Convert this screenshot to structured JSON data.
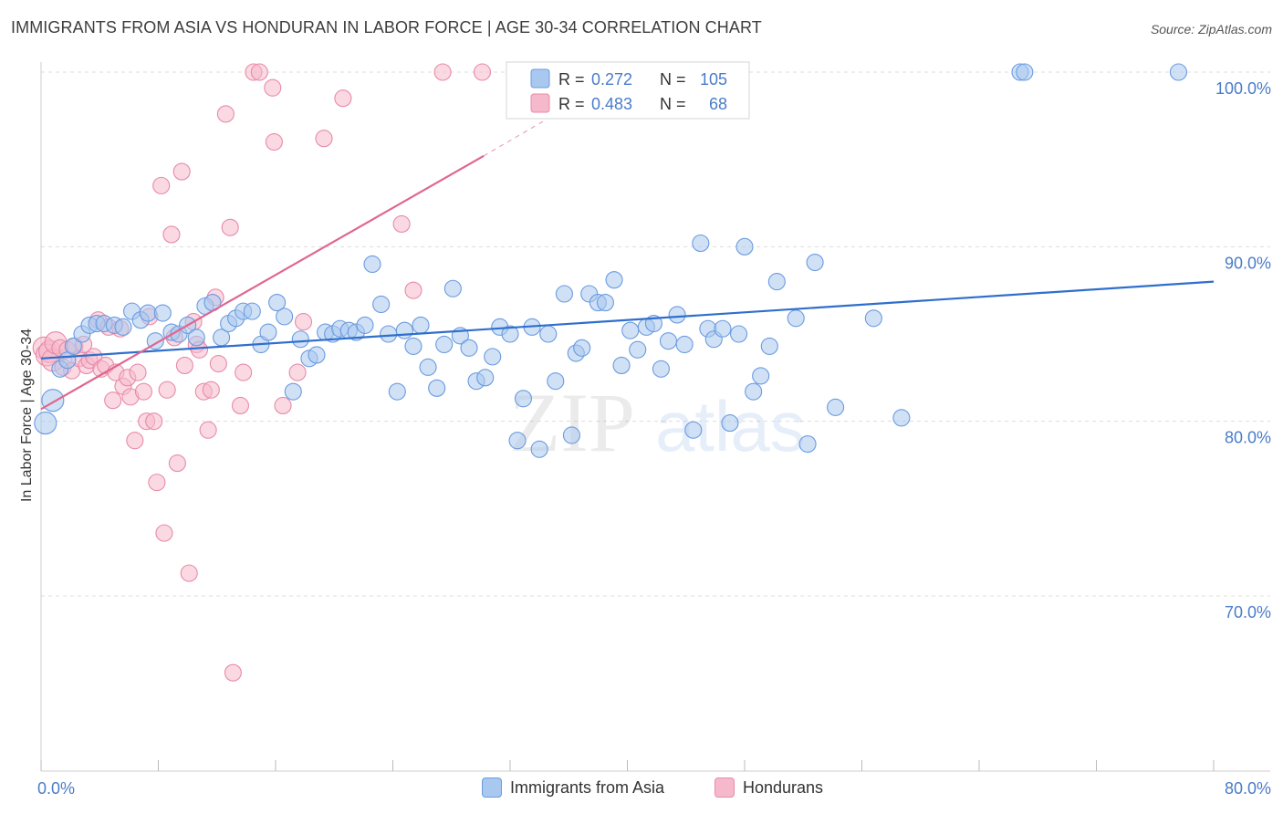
{
  "title": "IMMIGRANTS FROM ASIA VS HONDURAN IN LABOR FORCE | AGE 30-34 CORRELATION CHART",
  "source": "Source: ZipAtlas.com",
  "watermark": {
    "zip": "ZIP",
    "atlas": "atlas"
  },
  "colors": {
    "blue_fill": "#a9c8ef",
    "blue_stroke": "#6a9be0",
    "blue_line": "#2f6fcc",
    "pink_fill": "#f6b9cc",
    "pink_stroke": "#e88aa9",
    "pink_line": "#e0668f",
    "axis_text": "#4a7cc9",
    "grid": "#dddddd"
  },
  "legend_bottom": [
    {
      "label": "Immigrants from Asia",
      "color": "#a9c8ef",
      "stroke": "#6a9be0"
    },
    {
      "label": "Hondurans",
      "color": "#f6b9cc",
      "stroke": "#e88aa9"
    }
  ],
  "chart_data": {
    "type": "scatter",
    "xlabel": "",
    "ylabel": "In Labor Force | Age 30-34",
    "xlim": [
      0,
      80
    ],
    "ylim": [
      60.5,
      102
    ],
    "x_tick_labels": [
      {
        "value": 0,
        "label": "0.0%"
      },
      {
        "value": 80,
        "label": "80.0%"
      }
    ],
    "x_minor_ticks": [
      0,
      8,
      16,
      24,
      32,
      40,
      48,
      56,
      64,
      72,
      80
    ],
    "y_ticks": [
      {
        "value": 70,
        "label": "70.0%"
      },
      {
        "value": 80,
        "label": "80.0%"
      },
      {
        "value": 90,
        "label": "90.0%"
      },
      {
        "value": 100,
        "label": "100.0%"
      }
    ],
    "legend": [
      {
        "r_label": "R =",
        "r_value": "0.272",
        "n_label": "N =",
        "n_value": "105"
      },
      {
        "r_label": "R =",
        "r_value": "0.483",
        "n_label": "N =",
        "n_value": "68"
      }
    ],
    "series": [
      {
        "name": "Immigrants from Asia",
        "trend": {
          "x1": 0,
          "y1": 83.6,
          "x2": 80,
          "y2": 88.0
        },
        "points": [
          [
            0.3,
            79.9
          ],
          [
            0.8,
            81.2
          ],
          [
            1.3,
            83.0
          ],
          [
            1.8,
            83.5
          ],
          [
            2.2,
            84.3
          ],
          [
            2.8,
            85.0
          ],
          [
            3.3,
            85.5
          ],
          [
            3.8,
            85.6
          ],
          [
            4.3,
            85.6
          ],
          [
            5.0,
            85.5
          ],
          [
            5.6,
            85.4
          ],
          [
            6.2,
            86.3
          ],
          [
            6.8,
            85.8
          ],
          [
            7.3,
            86.2
          ],
          [
            7.8,
            84.6
          ],
          [
            8.3,
            86.2
          ],
          [
            8.9,
            85.1
          ],
          [
            9.4,
            85.0
          ],
          [
            10.0,
            85.5
          ],
          [
            10.6,
            84.8
          ],
          [
            11.2,
            86.6
          ],
          [
            11.7,
            86.8
          ],
          [
            12.3,
            84.8
          ],
          [
            12.8,
            85.6
          ],
          [
            13.3,
            85.9
          ],
          [
            13.8,
            86.3
          ],
          [
            14.4,
            86.3
          ],
          [
            15.0,
            84.4
          ],
          [
            15.5,
            85.1
          ],
          [
            16.1,
            86.8
          ],
          [
            16.6,
            86.0
          ],
          [
            17.2,
            81.7
          ],
          [
            17.7,
            84.7
          ],
          [
            18.3,
            83.6
          ],
          [
            18.8,
            83.8
          ],
          [
            19.4,
            85.1
          ],
          [
            19.9,
            85.0
          ],
          [
            20.4,
            85.3
          ],
          [
            21.0,
            85.2
          ],
          [
            21.5,
            85.1
          ],
          [
            22.1,
            85.5
          ],
          [
            22.6,
            89.0
          ],
          [
            23.2,
            86.7
          ],
          [
            23.7,
            85.0
          ],
          [
            24.3,
            81.7
          ],
          [
            24.8,
            85.2
          ],
          [
            25.4,
            84.3
          ],
          [
            25.9,
            85.5
          ],
          [
            26.4,
            83.1
          ],
          [
            27.0,
            81.9
          ],
          [
            27.5,
            84.4
          ],
          [
            28.1,
            87.6
          ],
          [
            28.6,
            84.9
          ],
          [
            29.2,
            84.2
          ],
          [
            29.7,
            82.3
          ],
          [
            30.3,
            82.5
          ],
          [
            30.8,
            83.7
          ],
          [
            31.3,
            85.4
          ],
          [
            32.0,
            85.0
          ],
          [
            32.5,
            78.9
          ],
          [
            32.9,
            81.3
          ],
          [
            33.5,
            85.4
          ],
          [
            34.0,
            78.4
          ],
          [
            34.6,
            85.0
          ],
          [
            35.1,
            82.3
          ],
          [
            35.7,
            87.3
          ],
          [
            36.2,
            79.2
          ],
          [
            36.5,
            83.9
          ],
          [
            36.9,
            84.2
          ],
          [
            37.4,
            87.3
          ],
          [
            38.0,
            86.8
          ],
          [
            38.5,
            86.8
          ],
          [
            39.1,
            88.1
          ],
          [
            39.6,
            83.2
          ],
          [
            40.2,
            85.2
          ],
          [
            40.7,
            84.1
          ],
          [
            41.3,
            85.4
          ],
          [
            41.8,
            85.6
          ],
          [
            42.3,
            83.0
          ],
          [
            42.8,
            84.6
          ],
          [
            43.4,
            86.1
          ],
          [
            43.9,
            84.4
          ],
          [
            44.5,
            79.5
          ],
          [
            45.0,
            90.2
          ],
          [
            45.5,
            85.3
          ],
          [
            45.9,
            84.7
          ],
          [
            46.5,
            85.3
          ],
          [
            47.0,
            79.9
          ],
          [
            47.6,
            85.0
          ],
          [
            48.0,
            90.0
          ],
          [
            48.6,
            81.7
          ],
          [
            49.1,
            82.6
          ],
          [
            49.7,
            84.3
          ],
          [
            50.2,
            88.0
          ],
          [
            51.5,
            85.9
          ],
          [
            52.3,
            78.7
          ],
          [
            52.8,
            89.1
          ],
          [
            54.2,
            80.8
          ],
          [
            56.8,
            85.9
          ],
          [
            58.7,
            80.2
          ],
          [
            66.8,
            100.0
          ],
          [
            67.1,
            100.0
          ],
          [
            77.6,
            100.0
          ]
        ]
      },
      {
        "name": "Hondurans",
        "trend": {
          "x1": 0,
          "y1": 80.7,
          "x2": 30.2,
          "y2": 95.2
        },
        "trend_dashed": {
          "x1": 30.2,
          "y1": 95.2,
          "x2": 34.5,
          "y2": 97.3
        },
        "points": [
          [
            0.2,
            84.2
          ],
          [
            0.4,
            83.8
          ],
          [
            0.6,
            84.0
          ],
          [
            0.8,
            83.5
          ],
          [
            1.0,
            84.5
          ],
          [
            1.3,
            84.2
          ],
          [
            1.5,
            83.1
          ],
          [
            1.8,
            84.1
          ],
          [
            2.1,
            82.9
          ],
          [
            2.3,
            84.3
          ],
          [
            2.6,
            83.6
          ],
          [
            2.9,
            84.4
          ],
          [
            3.1,
            83.2
          ],
          [
            3.3,
            83.5
          ],
          [
            3.6,
            83.7
          ],
          [
            3.9,
            85.8
          ],
          [
            4.1,
            83.0
          ],
          [
            4.4,
            83.2
          ],
          [
            4.6,
            85.4
          ],
          [
            4.9,
            81.2
          ],
          [
            5.1,
            82.8
          ],
          [
            5.4,
            85.3
          ],
          [
            5.6,
            82.0
          ],
          [
            5.9,
            82.5
          ],
          [
            6.1,
            81.4
          ],
          [
            6.4,
            78.9
          ],
          [
            6.6,
            82.8
          ],
          [
            7.0,
            81.7
          ],
          [
            7.2,
            80.0
          ],
          [
            7.4,
            86.0
          ],
          [
            7.7,
            80.0
          ],
          [
            7.9,
            76.5
          ],
          [
            8.2,
            93.5
          ],
          [
            8.4,
            73.6
          ],
          [
            8.6,
            81.8
          ],
          [
            8.9,
            90.7
          ],
          [
            9.1,
            84.8
          ],
          [
            9.3,
            77.6
          ],
          [
            9.6,
            94.3
          ],
          [
            9.8,
            83.2
          ],
          [
            10.1,
            71.3
          ],
          [
            10.4,
            85.7
          ],
          [
            10.6,
            84.4
          ],
          [
            10.8,
            84.1
          ],
          [
            11.1,
            81.7
          ],
          [
            11.4,
            79.5
          ],
          [
            11.6,
            81.8
          ],
          [
            11.9,
            87.1
          ],
          [
            12.1,
            83.3
          ],
          [
            12.6,
            97.6
          ],
          [
            12.9,
            91.1
          ],
          [
            13.1,
            65.6
          ],
          [
            13.6,
            80.9
          ],
          [
            13.8,
            82.8
          ],
          [
            14.5,
            100.0
          ],
          [
            14.9,
            100.0
          ],
          [
            15.8,
            99.1
          ],
          [
            15.9,
            96.0
          ],
          [
            16.5,
            80.9
          ],
          [
            17.5,
            82.8
          ],
          [
            17.9,
            85.7
          ],
          [
            19.3,
            96.2
          ],
          [
            20.6,
            98.5
          ],
          [
            24.6,
            91.3
          ],
          [
            25.4,
            87.5
          ],
          [
            27.4,
            100.0
          ],
          [
            30.1,
            100.0
          ]
        ]
      }
    ]
  }
}
